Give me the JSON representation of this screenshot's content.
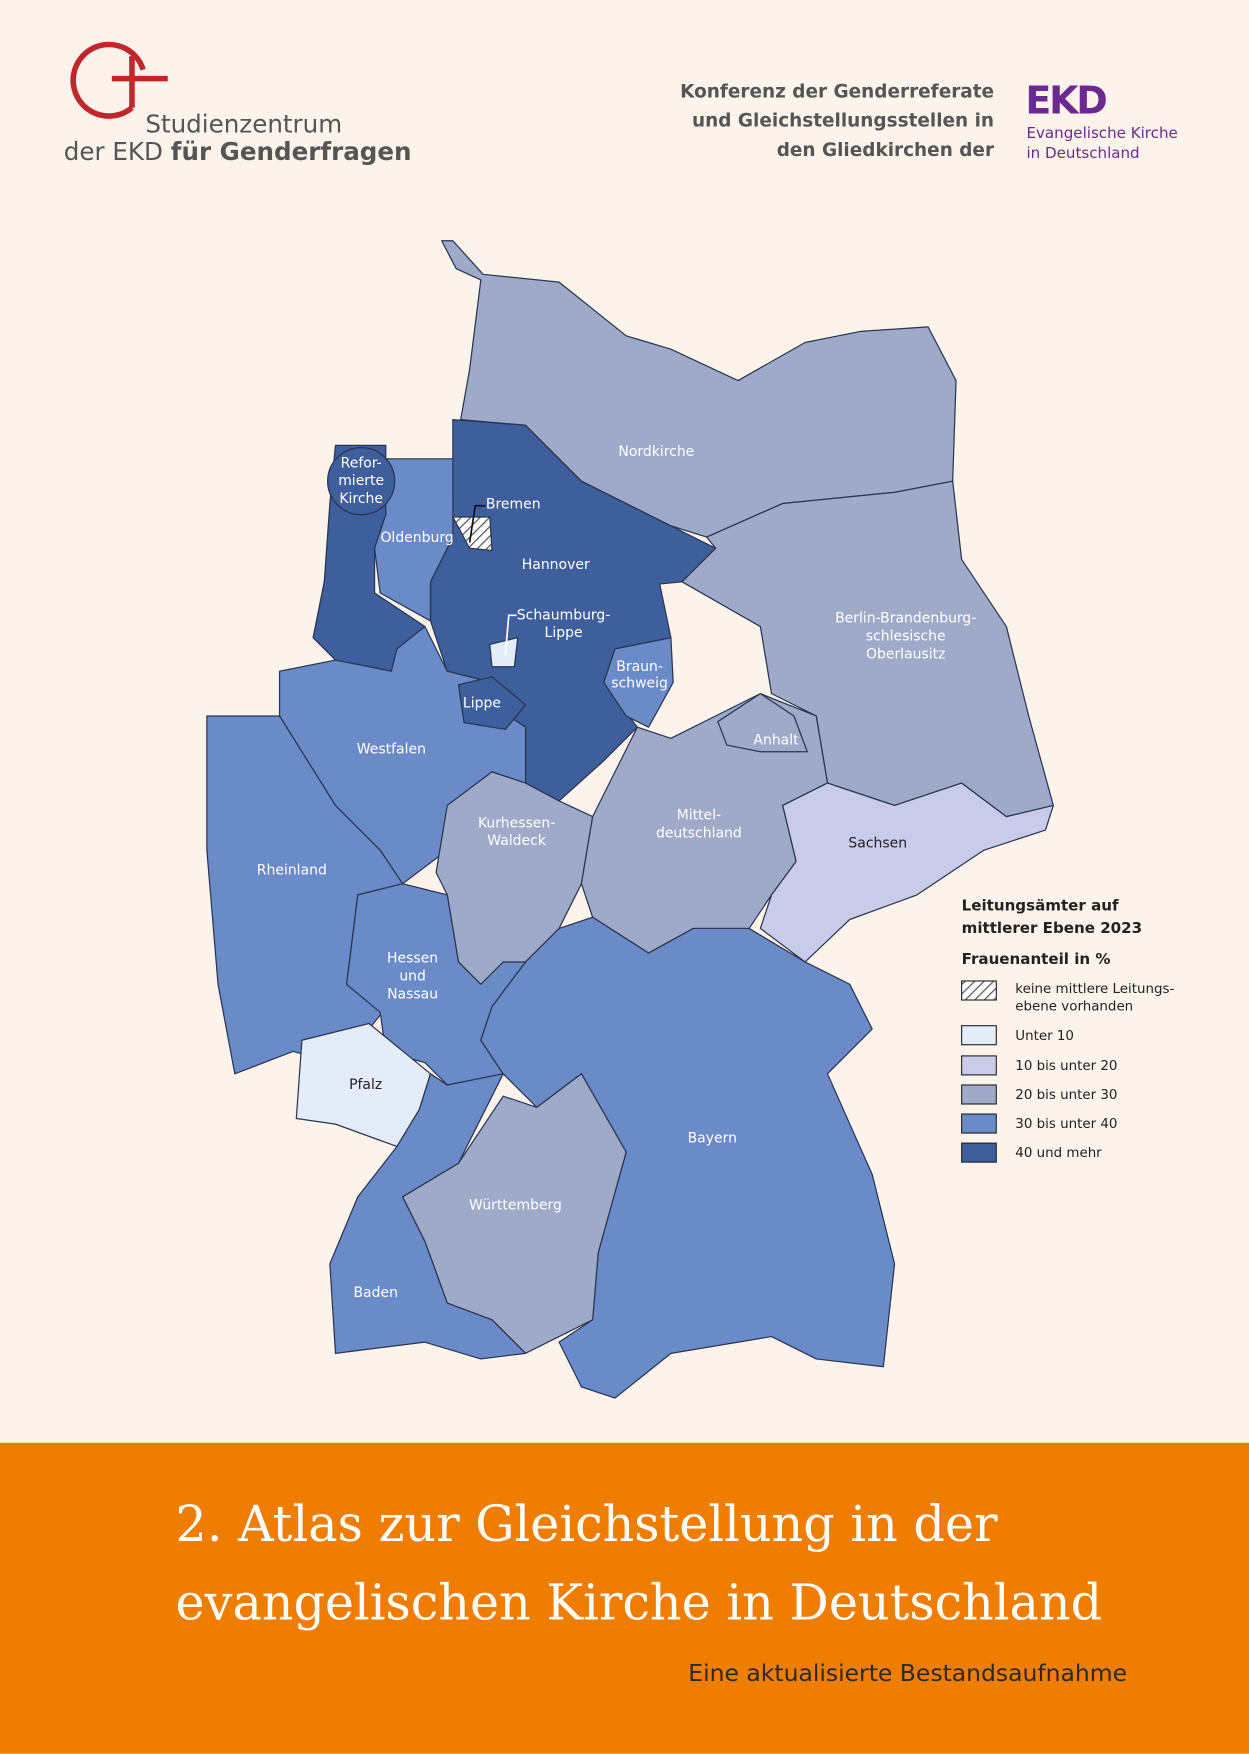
{
  "header": {
    "logo_left": {
      "line1": "Studienzentrum",
      "line2_regular": "der EKD",
      "line2_bold": "für Genderfragen"
    },
    "conference": [
      "Konferenz der Genderreferate",
      "und Gleichstellungsstellen in",
      "den Gliedkirchen der"
    ],
    "logo_right": {
      "mark": "EKD",
      "lines": [
        "Evangelische Kirche",
        "in Deutschland"
      ]
    }
  },
  "map": {
    "regions": [
      {
        "name": [
          "Nordkirche"
        ],
        "color": "#9eaac8"
      },
      {
        "name": [
          "Berlin-Brandenburg-",
          "schlesische",
          "Oberlausitz"
        ],
        "color": "#9eaac8"
      },
      {
        "name": [
          "Hannover"
        ],
        "color": "#3e5f9b"
      },
      {
        "name": [
          "Refor-",
          "mierte",
          "Kirche"
        ],
        "color": "#3e5f9b"
      },
      {
        "name": [
          "Oldenburg"
        ],
        "color": "#6b8bc8"
      },
      {
        "name": [
          "Bremen"
        ],
        "color": "hatched"
      },
      {
        "name": [
          "Westfalen"
        ],
        "color": "#6b8bc8"
      },
      {
        "name": [
          "Lippe"
        ],
        "color": "#3e5f9b"
      },
      {
        "name": [
          "Schaumburg-",
          "Lippe"
        ],
        "color": "#e3ecf8"
      },
      {
        "name": [
          "Braun-",
          "schweig"
        ],
        "color": "#6b8bc8"
      },
      {
        "name": [
          "Rheinland"
        ],
        "color": "#6b8bc8"
      },
      {
        "name": [
          "Kurhessen-",
          "Waldeck"
        ],
        "color": "#9eaac8"
      },
      {
        "name": [
          "Mittel-",
          "deutschland"
        ],
        "color": "#9eaac8"
      },
      {
        "name": [
          "Anhalt"
        ],
        "color": "#9eaac8"
      },
      {
        "name": [
          "Sachsen"
        ],
        "color": "#c9cbe8"
      },
      {
        "name": [
          "Hessen",
          "und",
          "Nassau"
        ],
        "color": "#6b8bc8"
      },
      {
        "name": [
          "Pfalz"
        ],
        "color": "#e3ecf8"
      },
      {
        "name": [
          "Bayern"
        ],
        "color": "#6b8bc8"
      },
      {
        "name": [
          "Württemberg"
        ],
        "color": "#9eaac8"
      },
      {
        "name": [
          "Baden"
        ],
        "color": "#6b8bc8"
      }
    ],
    "legend": {
      "title": [
        "Leitungsämter auf",
        "mittlerer Ebene 2023"
      ],
      "subtitle": "Frauenanteil in %",
      "items": [
        {
          "label": [
            "keine mittlere Leitungs-",
            "ebene vorhanden"
          ],
          "color": "hatched"
        },
        {
          "label": [
            "Unter 10"
          ],
          "color": "#e3ecf8"
        },
        {
          "label": [
            "10 bis unter 20"
          ],
          "color": "#c9cbe8"
        },
        {
          "label": [
            "20 bis unter 30"
          ],
          "color": "#9eaac8"
        },
        {
          "label": [
            "30 bis unter 40"
          ],
          "color": "#6b8bc8"
        },
        {
          "label": [
            "40 und mehr"
          ],
          "color": "#3e5f9b"
        }
      ]
    }
  },
  "footer": {
    "title": [
      "2. Atlas zur Gleichstellung in der",
      "evangelischen Kirche in Deutschland"
    ],
    "subtitle": "Eine aktualisierte Bestandsaufnahme"
  }
}
